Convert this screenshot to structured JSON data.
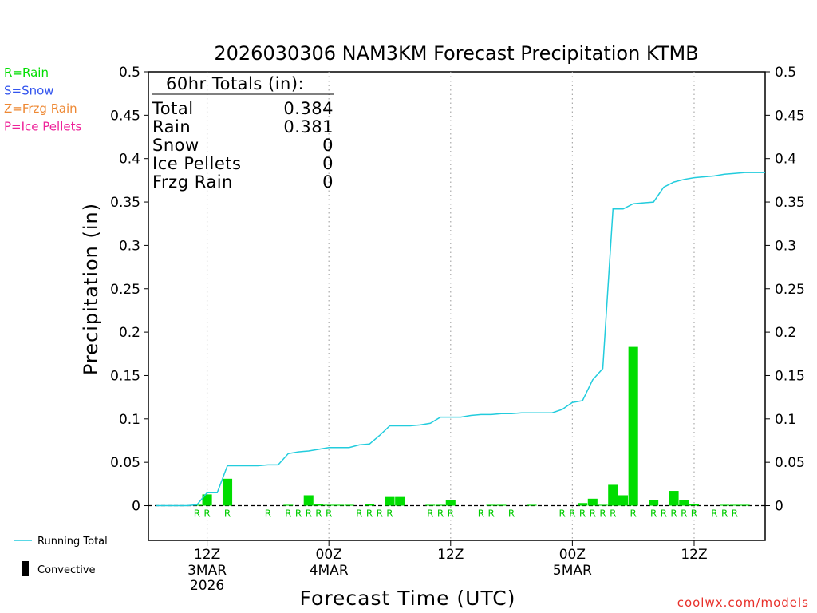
{
  "chart_data": {
    "type": "bar",
    "title": "2026030306 NAM3KM Forecast Precipitation KTMB",
    "xlabel": "Forecast Time (UTC)",
    "ylabel": "Precipitation (in)",
    "ylim": [
      -0.04,
      0.5
    ],
    "yticks": [
      "0",
      "0.05",
      "0.1",
      "0.15",
      "0.2",
      "0.25",
      "0.3",
      "0.35",
      "0.4",
      "0.45",
      "0.5"
    ],
    "xlim_hours": [
      1,
      61
    ],
    "xticks": [
      {
        "hour": 6,
        "label": "12Z",
        "sub1": "3MAR",
        "sub2": "2026"
      },
      {
        "hour": 18,
        "label": "00Z",
        "sub1": "4MAR",
        "sub2": ""
      },
      {
        "hour": 30,
        "label": "12Z",
        "sub1": "",
        "sub2": ""
      },
      {
        "hour": 42,
        "label": "00Z",
        "sub1": "5MAR",
        "sub2": ""
      },
      {
        "hour": 54,
        "label": "12Z",
        "sub1": "",
        "sub2": ""
      }
    ],
    "grid": "vertical dotted at tick hours",
    "hours": [
      1,
      2,
      3,
      4,
      5,
      6,
      7,
      8,
      9,
      10,
      11,
      12,
      13,
      14,
      15,
      16,
      17,
      18,
      19,
      20,
      21,
      22,
      23,
      24,
      25,
      26,
      27,
      28,
      29,
      30,
      31,
      32,
      33,
      34,
      35,
      36,
      37,
      38,
      39,
      40,
      41,
      42,
      43,
      44,
      45,
      46,
      47,
      48,
      49,
      50,
      51,
      52,
      53,
      54,
      55,
      56,
      57,
      58,
      59,
      60,
      61
    ],
    "series": [
      {
        "name": "Convective",
        "type": "bar",
        "values": [
          0,
          0,
          0,
          0,
          0.001,
          0.013,
          0,
          0.031,
          0,
          0,
          0,
          0,
          0,
          0.001,
          0,
          0.012,
          0.002,
          0.001,
          0.001,
          0.001,
          0,
          0.002,
          0,
          0.01,
          0.01,
          0,
          0,
          0.001,
          0.001,
          0.006,
          0,
          0,
          0,
          0.001,
          0.001,
          0,
          0,
          0.001,
          0,
          0,
          0,
          0,
          0.003,
          0.008,
          0.001,
          0.024,
          0.012,
          0.183,
          0,
          0.006,
          0,
          0.017,
          0.006,
          0.002,
          0,
          0,
          0.001,
          0.001,
          0.001,
          0,
          0
        ]
      },
      {
        "name": "Running Total",
        "type": "line",
        "values": [
          0,
          0,
          0,
          0,
          0.001,
          0.015,
          0.015,
          0.046,
          0.046,
          0.046,
          0.046,
          0.047,
          0.047,
          0.06,
          0.062,
          0.063,
          0.065,
          0.067,
          0.067,
          0.067,
          0.07,
          0.071,
          0.081,
          0.092,
          0.092,
          0.092,
          0.093,
          0.095,
          0.102,
          0.102,
          0.102,
          0.104,
          0.105,
          0.105,
          0.106,
          0.106,
          0.107,
          0.107,
          0.107,
          0.107,
          0.111,
          0.119,
          0.121,
          0.145,
          0.158,
          0.342,
          0.342,
          0.348,
          0.349,
          0.35,
          0.367,
          0.373,
          0.376,
          0.378,
          0.379,
          0.38,
          0.382,
          0.383,
          0.384,
          0.384,
          0.384
        ]
      }
    ],
    "ptype_marks": [
      {
        "hour": 5,
        "label": "R"
      },
      {
        "hour": 6,
        "label": "R"
      },
      {
        "hour": 8,
        "label": "R"
      },
      {
        "hour": 12,
        "label": "R"
      },
      {
        "hour": 14,
        "label": "R"
      },
      {
        "hour": 15,
        "label": "R"
      },
      {
        "hour": 16,
        "label": "R"
      },
      {
        "hour": 17,
        "label": "R"
      },
      {
        "hour": 18,
        "label": "R"
      },
      {
        "hour": 21,
        "label": "R"
      },
      {
        "hour": 22,
        "label": "R"
      },
      {
        "hour": 23,
        "label": "R"
      },
      {
        "hour": 24,
        "label": "R"
      },
      {
        "hour": 28,
        "label": "R"
      },
      {
        "hour": 29,
        "label": "R"
      },
      {
        "hour": 30,
        "label": "R"
      },
      {
        "hour": 33,
        "label": "R"
      },
      {
        "hour": 34,
        "label": "R"
      },
      {
        "hour": 36,
        "label": "R"
      },
      {
        "hour": 41,
        "label": "R"
      },
      {
        "hour": 42,
        "label": "R"
      },
      {
        "hour": 43,
        "label": "R"
      },
      {
        "hour": 44,
        "label": "R"
      },
      {
        "hour": 45,
        "label": "R"
      },
      {
        "hour": 46,
        "label": "R"
      },
      {
        "hour": 48,
        "label": "R"
      },
      {
        "hour": 50,
        "label": "R"
      },
      {
        "hour": 51,
        "label": "R"
      },
      {
        "hour": 52,
        "label": "R"
      },
      {
        "hour": 53,
        "label": "R"
      },
      {
        "hour": 54,
        "label": "R"
      },
      {
        "hour": 56,
        "label": "R"
      },
      {
        "hour": 57,
        "label": "R"
      },
      {
        "hour": 58,
        "label": "R"
      }
    ],
    "legend_placement": "bottom-left",
    "ptype_legend": [
      {
        "label": "R=Rain",
        "color": "#00dd00"
      },
      {
        "label": "S=Snow",
        "color": "#3355ee"
      },
      {
        "label": "Z=Frzg Rain",
        "color": "#ee8833"
      },
      {
        "label": "P=Ice Pellets",
        "color": "#ee2299"
      }
    ],
    "totals": {
      "heading": "60hr Totals (in):",
      "rows": [
        {
          "label": "Total",
          "value": "0.384"
        },
        {
          "label": "Rain",
          "value": "0.381"
        },
        {
          "label": "Snow",
          "value": "0"
        },
        {
          "label": "Ice Pellets",
          "value": "0"
        },
        {
          "label": "Frzg Rain",
          "value": "0"
        }
      ]
    },
    "colors": {
      "bar": "#00dd00",
      "line": "#22ccdd",
      "rain_mark": "#00cc00",
      "convective_legend": "#000000"
    }
  },
  "credit": "coolwx.com/models"
}
